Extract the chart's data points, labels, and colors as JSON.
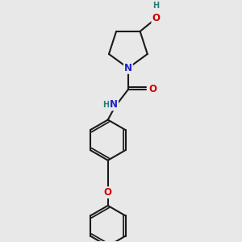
{
  "bg_color": "#e8e8e8",
  "bond_color": "#1a1a1a",
  "N_color": "#2020cc",
  "O_color": "#cc0000",
  "H_color": "#2a7a7a",
  "line_width": 1.5,
  "font_size_atom": 8.5,
  "fig_size": [
    3.0,
    3.0
  ],
  "dpi": 100,
  "xlim": [
    0,
    10
  ],
  "ylim": [
    0,
    10
  ]
}
